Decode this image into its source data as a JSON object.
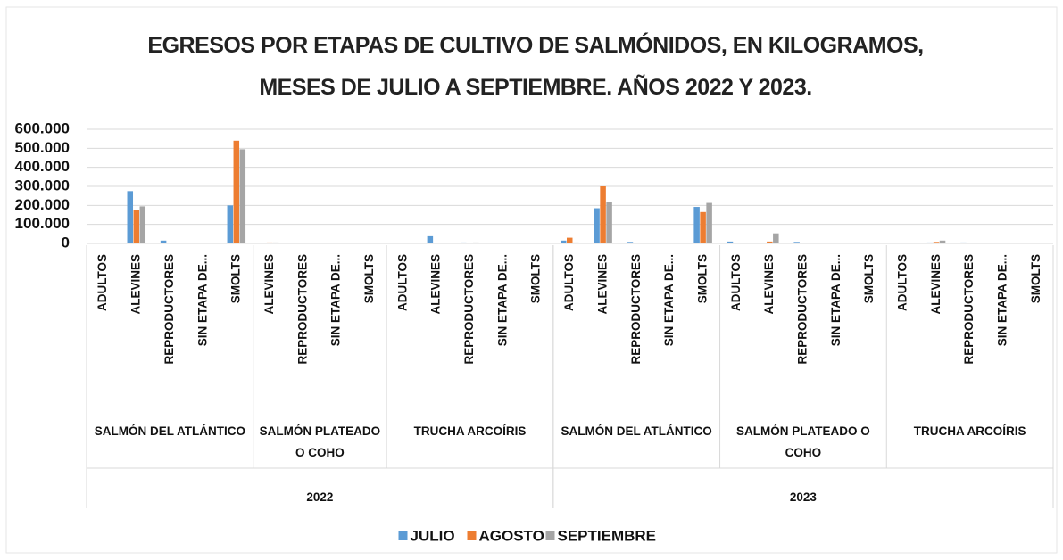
{
  "chart_data": {
    "type": "bar",
    "title": "EGRESOS POR ETAPAS DE CULTIVO DE SALMÓNIDOS, EN KILOGRAMOS, MESES DE JULIO A SEPTIEMBRE. AÑOS 2022 Y 2023.",
    "groups": [
      {
        "name": "2022",
        "species": [
          {
            "name": "SALMÓN DEL ATLÁNTICO",
            "stages": [
              "ADULTOS",
              "ALEVINES",
              "REPRODUCTORES",
              "SIN ETAPA DE...",
              "SMOLTS"
            ]
          },
          {
            "name": "SALMÓN PLATEADO O COHO",
            "stages": [
              "ALEVINES",
              "REPRODUCTORES",
              "SIN ETAPA DE...",
              "SMOLTS"
            ]
          },
          {
            "name": "TRUCHA ARCOÍRIS",
            "stages": [
              "ADULTOS",
              "ALEVINES",
              "REPRODUCTORES",
              "SIN ETAPA DE...",
              "SMOLTS"
            ]
          }
        ]
      },
      {
        "name": "2023",
        "species": [
          {
            "name": "SALMÓN DEL ATLÁNTICO",
            "stages": [
              "ADULTOS",
              "ALEVINES",
              "REPRODUCTORES",
              "SIN ETAPA DE...",
              "SMOLTS"
            ]
          },
          {
            "name": "SALMÓN PLATEADO O COHO",
            "stages": [
              "ADULTOS",
              "ALEVINES",
              "REPRODUCTORES",
              "SIN ETAPA DE...",
              "SMOLTS"
            ]
          },
          {
            "name": "TRUCHA ARCOÍRIS",
            "stages": [
              "ADULTOS",
              "ALEVINES",
              "REPRODUCTORES",
              "SIN ETAPA DE...",
              "SMOLTS"
            ]
          }
        ]
      }
    ],
    "series": [
      {
        "name": "JULIO",
        "color": "#5b9bd5",
        "values": [
          0,
          275000,
          15000,
          0,
          200000,
          2000,
          0,
          0,
          0,
          0,
          38000,
          5000,
          0,
          0,
          15000,
          185000,
          8000,
          2000,
          192000,
          10000,
          3000,
          8000,
          0,
          0,
          0,
          5000,
          5000,
          0,
          0
        ]
      },
      {
        "name": "AGOSTO",
        "color": "#ed7d31",
        "values": [
          0,
          175000,
          0,
          0,
          540000,
          5000,
          0,
          0,
          0,
          2000,
          2000,
          3000,
          0,
          0,
          30000,
          300000,
          2000,
          0,
          165000,
          0,
          10000,
          0,
          0,
          0,
          0,
          8000,
          0,
          0,
          3000
        ]
      },
      {
        "name": "SEPTIEMBRE",
        "color": "#a5a5a5",
        "values": [
          0,
          195000,
          0,
          0,
          495000,
          5000,
          0,
          0,
          0,
          0,
          0,
          5000,
          0,
          0,
          5000,
          218000,
          3000,
          0,
          213000,
          0,
          53000,
          0,
          0,
          0,
          0,
          15000,
          0,
          0,
          0
        ]
      }
    ],
    "ylim": [
      0,
      600000
    ],
    "yticks": [
      0,
      {
        "value": 100000,
        "label": "100.000"
      },
      {
        "value": 200000,
        "label": "200.000"
      },
      {
        "value": 300000,
        "label": "300.000"
      },
      {
        "value": 400000,
        "label": "400.000"
      },
      {
        "value": 500000,
        "label": "500.000"
      },
      {
        "value": 600000,
        "label": "600.000"
      }
    ],
    "grid": true,
    "legend": "bottom"
  }
}
